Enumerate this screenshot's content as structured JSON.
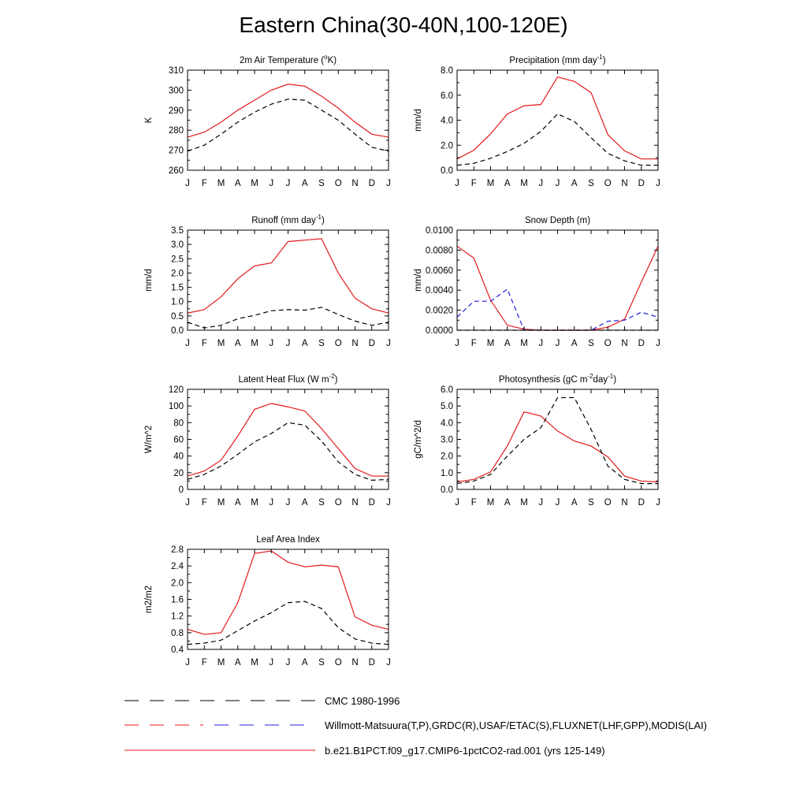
{
  "page_title": "Eastern China(30-40N,100-120E)",
  "months": [
    "J",
    "F",
    "M",
    "A",
    "M",
    "J",
    "J",
    "A",
    "S",
    "O",
    "N",
    "D",
    "J"
  ],
  "colors": {
    "obs_black": "#000000",
    "obs_blue": "#1f1fe0",
    "model_red": "#e41a1c"
  },
  "legend": [
    {
      "label": "CMC 1980-1996",
      "style": "dashed-black"
    },
    {
      "label": "Willmott-Matsuura(T,P),GRDC(R),USAF/ETAC(S),FLUXNET(LHF,GPP),MODIS(LAI)",
      "style": "dashed-mixed"
    },
    {
      "label": "b.e21.B1PCT.f09_g17.CMIP6-1pctCO2-rad.001 (yrs 125-149)",
      "style": "solid-red"
    }
  ],
  "chart_data": [
    {
      "type": "line",
      "title": "2m Air Temperature (",
      "title_sup": "o",
      "title_tail": "K)",
      "ylabel": "K",
      "ylim": [
        260,
        310
      ],
      "yticks": [
        "260",
        "270",
        "280",
        "290",
        "300",
        "310"
      ],
      "yticks_values": [
        260,
        270,
        280,
        290,
        300,
        310
      ],
      "series": [
        {
          "style": "solid-red",
          "values": [
            276.5,
            279,
            284,
            290,
            295,
            300,
            303,
            302,
            297,
            291,
            284,
            278,
            276.5
          ]
        },
        {
          "style": "dashed-black",
          "values": [
            269.5,
            272.5,
            278,
            284,
            289,
            293,
            295.5,
            295,
            290,
            285,
            278,
            271.5,
            269.5
          ]
        }
      ]
    },
    {
      "type": "line",
      "title": "Precipitation (mm day",
      "title_sup": "-1",
      "title_tail": ")",
      "ylabel": "mm/d",
      "ylim": [
        0,
        8
      ],
      "yticks": [
        "0.0",
        "2.0",
        "4.0",
        "6.0",
        "8.0"
      ],
      "yticks_values": [
        0,
        2,
        4,
        6,
        8
      ],
      "series": [
        {
          "style": "solid-red",
          "values": [
            0.9,
            1.6,
            2.9,
            4.5,
            5.15,
            5.25,
            7.45,
            7.1,
            6.2,
            2.85,
            1.55,
            0.9,
            0.9
          ]
        },
        {
          "style": "dashed-black",
          "values": [
            0.4,
            0.55,
            0.95,
            1.5,
            2.15,
            3.1,
            4.5,
            3.9,
            2.6,
            1.35,
            0.75,
            0.4,
            0.4
          ]
        }
      ]
    },
    {
      "type": "line",
      "title": "Runoff (mm day",
      "title_sup": "-1",
      "title_tail": ")",
      "ylabel": "mm/d",
      "ylim": [
        0,
        3.5
      ],
      "yticks": [
        "0.0",
        "0.5",
        "1.0",
        "1.5",
        "2.0",
        "2.5",
        "3.0",
        "3.5"
      ],
      "yticks_values": [
        0,
        0.5,
        1,
        1.5,
        2,
        2.5,
        3,
        3.5
      ],
      "series": [
        {
          "style": "solid-red",
          "values": [
            0.6,
            0.72,
            1.17,
            1.8,
            2.25,
            2.35,
            3.1,
            3.15,
            3.2,
            2.0,
            1.12,
            0.75,
            0.6
          ]
        },
        {
          "style": "dashed-black",
          "values": [
            0.28,
            0.08,
            0.17,
            0.4,
            0.52,
            0.68,
            0.72,
            0.7,
            0.8,
            0.55,
            0.32,
            0.17,
            0.28
          ]
        }
      ]
    },
    {
      "type": "line",
      "title": "Snow Depth (m)",
      "title_sup": "",
      "title_tail": "",
      "ylabel": "mm/d",
      "ylim": [
        0,
        0.01
      ],
      "yticks": [
        "0.0000",
        "0.0020",
        "0.0040",
        "0.0060",
        "0.0080",
        "0.0100"
      ],
      "yticks_values": [
        0,
        0.002,
        0.004,
        0.006,
        0.008,
        0.01
      ],
      "series": [
        {
          "style": "solid-red",
          "values": [
            0.0084,
            0.0072,
            0.003,
            0.0005,
            0.0001,
            0.0,
            0.0,
            0.0,
            0.0,
            0.0003,
            0.0011,
            0.0048,
            0.0084
          ]
        },
        {
          "style": "dashed-blue",
          "values": [
            0.0013,
            0.0029,
            0.0029,
            0.0041,
            0.0,
            0.0,
            0.0,
            0.0,
            0.0,
            0.0009,
            0.001,
            0.0018,
            0.0013
          ]
        },
        {
          "style": "dashed-black",
          "values": [
            0,
            0,
            0,
            0,
            0,
            0,
            0,
            0,
            0,
            0,
            0,
            0,
            0
          ]
        }
      ]
    },
    {
      "type": "line",
      "title": "Latent Heat Flux (W m",
      "title_sup": "-2",
      "title_tail": ")",
      "ylabel": "W/m^2",
      "ylim": [
        0,
        120
      ],
      "yticks": [
        "0",
        "20",
        "40",
        "60",
        "80",
        "100",
        "120"
      ],
      "yticks_values": [
        0,
        20,
        40,
        60,
        80,
        100,
        120
      ],
      "series": [
        {
          "style": "solid-red",
          "values": [
            16,
            22,
            35,
            64,
            96,
            103,
            99,
            94,
            73,
            49,
            25,
            16,
            16
          ]
        },
        {
          "style": "dashed-black",
          "values": [
            12,
            18,
            28,
            42,
            57,
            67,
            80,
            77,
            58,
            33,
            18,
            11,
            12
          ]
        }
      ]
    },
    {
      "type": "line",
      "title": "Photosynthesis (gC m",
      "title_sup": "-2",
      "title_tail": "day",
      "title_sup2": "-1",
      "title_tail2": ")",
      "ylabel": "gC/m^2/d",
      "ylim": [
        0,
        6
      ],
      "yticks": [
        "0.0",
        "1.0",
        "2.0",
        "3.0",
        "4.0",
        "5.0",
        "6.0"
      ],
      "yticks_values": [
        0,
        1,
        2,
        3,
        4,
        5,
        6
      ],
      "series": [
        {
          "style": "solid-red",
          "values": [
            0.45,
            0.6,
            1.05,
            2.6,
            4.65,
            4.4,
            3.5,
            2.9,
            2.6,
            1.95,
            0.8,
            0.5,
            0.45
          ]
        },
        {
          "style": "dashed-black",
          "values": [
            0.35,
            0.5,
            0.9,
            2.0,
            3.0,
            3.7,
            5.5,
            5.5,
            3.6,
            1.4,
            0.6,
            0.35,
            0.35
          ]
        }
      ]
    },
    {
      "type": "line",
      "title": "Leaf Area Index",
      "title_sup": "",
      "title_tail": "",
      "ylabel": "m2/m2",
      "ylim": [
        0.4,
        2.8
      ],
      "yticks": [
        "0.4",
        "0.8",
        "1.2",
        "1.6",
        "2.0",
        "2.4",
        "2.8"
      ],
      "yticks_values": [
        0.4,
        0.8,
        1.2,
        1.6,
        2.0,
        2.4,
        2.8
      ],
      "series": [
        {
          "style": "solid-red",
          "values": [
            0.88,
            0.76,
            0.8,
            1.52,
            2.7,
            2.76,
            2.49,
            2.38,
            2.42,
            2.38,
            1.18,
            0.98,
            0.88
          ]
        },
        {
          "style": "dashed-black",
          "values": [
            0.52,
            0.55,
            0.62,
            0.85,
            1.08,
            1.28,
            1.52,
            1.55,
            1.38,
            0.92,
            0.65,
            0.55,
            0.52
          ]
        }
      ]
    }
  ]
}
